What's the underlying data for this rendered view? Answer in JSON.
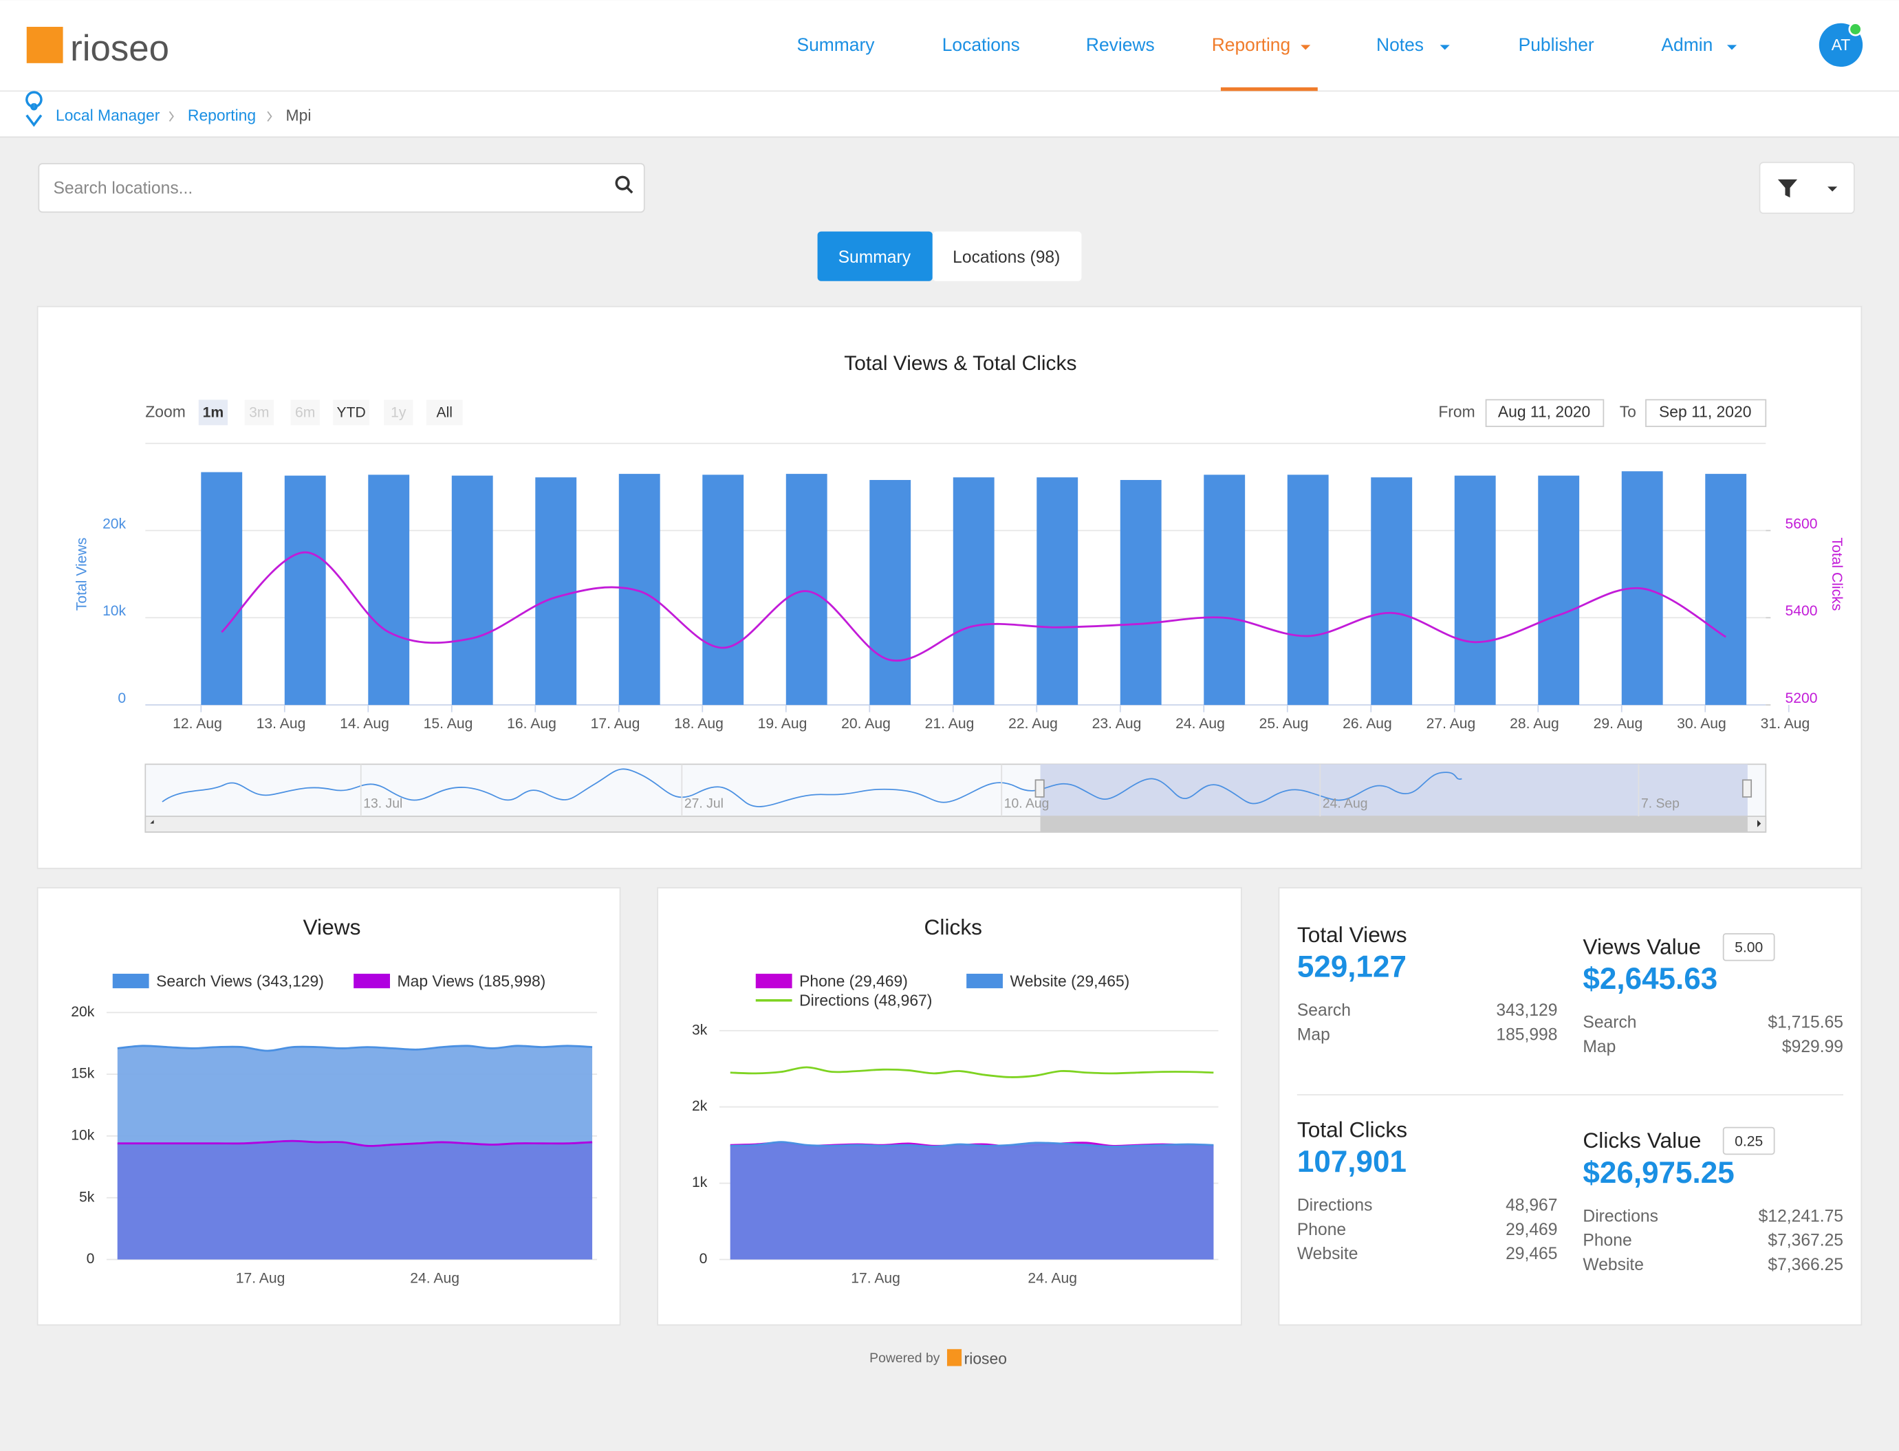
{
  "nav": {
    "logo": "rioseo",
    "items": [
      "Summary",
      "Locations",
      "Reviews",
      "Reporting",
      "Notes",
      "Publisher",
      "Admin"
    ],
    "active": 3,
    "dropdowns": [
      3,
      4,
      6
    ],
    "avatar": "AT"
  },
  "breadcrumb": [
    "Local Manager",
    "Reporting",
    "Mpi"
  ],
  "search_placeholder": "Search locations...",
  "tabs": [
    "Summary",
    "Locations (98)"
  ],
  "main_chart": {
    "type": "bar",
    "title": "Total Views & Total Clicks",
    "zoom_label": "Zoom",
    "zoom_buttons": [
      {
        "label": "1m",
        "state": "selected"
      },
      {
        "label": "3m",
        "state": "disabled"
      },
      {
        "label": "6m",
        "state": "disabled"
      },
      {
        "label": "YTD",
        "state": "enabled"
      },
      {
        "label": "1y",
        "state": "disabled"
      },
      {
        "label": "All",
        "state": "enabled"
      }
    ],
    "from_label": "From",
    "from": "Aug 11, 2020",
    "to_label": "To",
    "to": "Sep 11, 2020",
    "categories": [
      "12. Aug",
      "13. Aug",
      "14. Aug",
      "15. Aug",
      "16. Aug",
      "17. Aug",
      "18. Aug",
      "19. Aug",
      "20. Aug",
      "21. Aug",
      "22. Aug",
      "23. Aug",
      "24. Aug",
      "25. Aug",
      "26. Aug",
      "27. Aug",
      "28. Aug",
      "29. Aug",
      "30. Aug",
      "31. Aug"
    ],
    "series": [
      {
        "name": "Total Views",
        "color": "#4a90e2",
        "axis": "y",
        "values": [
          26700,
          26300,
          26400,
          26300,
          26100,
          26500,
          26400,
          26500,
          25800,
          26100,
          26100,
          25800,
          26400,
          26400,
          26100,
          26300,
          26300,
          26800,
          26500,
          null
        ]
      },
      {
        "name": "Total Clicks",
        "color": "#c21bd8",
        "axis": "y2",
        "values": [
          5367,
          5550,
          5367,
          5353,
          5447,
          5461,
          5331,
          5461,
          5303,
          5381,
          5378,
          5386,
          5400,
          5358,
          5411,
          5344,
          5406,
          5467,
          5356,
          null
        ]
      }
    ],
    "ylim": [
      0,
      30000
    ],
    "yticks": [
      {
        "value": 0,
        "label": "0"
      },
      {
        "value": 10000,
        "label": "10k"
      },
      {
        "value": 20000,
        "label": "20k"
      }
    ],
    "y2lim": [
      5200,
      5800
    ],
    "y2ticks": [
      5200,
      5400,
      5600
    ],
    "navigator_labels": [
      "13. Jul",
      "27. Jul",
      "10. Aug",
      "24. Aug",
      "7. Sep"
    ]
  },
  "views_chart": {
    "type": "area",
    "title": "Views",
    "series": [
      {
        "name": "Search Views (343,129)",
        "color": "#4a90e2",
        "fill": "#79a9e8",
        "values": [
          17100,
          17300,
          17200,
          17100,
          17200,
          17200,
          16900,
          17200,
          17200,
          17100,
          17200,
          17100,
          17000,
          17200,
          17300,
          17100,
          17300,
          17200,
          17300,
          17200
        ]
      },
      {
        "name": "Map Views (185,998)",
        "color": "#b000e0",
        "fill": "#6a7ee3",
        "values": [
          9400,
          9400,
          9400,
          9400,
          9400,
          9400,
          9500,
          9600,
          9500,
          9500,
          9200,
          9300,
          9400,
          9500,
          9400,
          9300,
          9400,
          9400,
          9400,
          9500
        ]
      }
    ],
    "ylim": [
      0,
      20000
    ],
    "yticks": [
      {
        "value": 0,
        "label": "0"
      },
      {
        "value": 5000,
        "label": "5k"
      },
      {
        "value": 10000,
        "label": "10k"
      },
      {
        "value": 15000,
        "label": "15k"
      },
      {
        "value": 20000,
        "label": "20k"
      }
    ],
    "x_labels": [
      "17. Aug",
      "24. Aug"
    ]
  },
  "clicks_chart": {
    "type": "area",
    "title": "Clicks",
    "series": [
      {
        "name": "Phone (29,469)",
        "color": "#c000d8",
        "fill": "#6a7ee3",
        "values": [
          1500,
          1510,
          1530,
          1490,
          1500,
          1510,
          1500,
          1520,
          1490,
          1500,
          1510,
          1480,
          1500,
          1520,
          1530,
          1490,
          1500,
          1510,
          1500,
          1490
        ]
      },
      {
        "name": "Website (29,465)",
        "color": "#4a90e2",
        "fill": "#6a7ee3",
        "values": [
          1490,
          1500,
          1540,
          1500,
          1490,
          1500,
          1490,
          1500,
          1480,
          1510,
          1490,
          1500,
          1530,
          1520,
          1500,
          1480,
          1490,
          1500,
          1510,
          1500
        ]
      },
      {
        "name": "Directions (48,967)",
        "color": "#7ed321",
        "fill": "none",
        "values": [
          2450,
          2440,
          2460,
          2520,
          2460,
          2470,
          2490,
          2480,
          2440,
          2470,
          2420,
          2390,
          2410,
          2470,
          2450,
          2440,
          2450,
          2460,
          2460,
          2450
        ]
      }
    ],
    "ylim": [
      0,
      3000
    ],
    "yticks": [
      {
        "value": 0,
        "label": "0"
      },
      {
        "value": 1000,
        "label": "1k"
      },
      {
        "value": 2000,
        "label": "2k"
      },
      {
        "value": 3000,
        "label": "3k"
      }
    ],
    "x_labels": [
      "17. Aug",
      "24. Aug"
    ]
  },
  "stats": [
    {
      "title": "Total Views",
      "value": "529,127",
      "rows": [
        {
          "label": "Search",
          "value": "343,129"
        },
        {
          "label": "Map",
          "value": "185,998"
        }
      ]
    },
    {
      "title": "Views Value",
      "input": "5.00",
      "value": "$2,645.63",
      "rows": [
        {
          "label": "Search",
          "value": "$1,715.65"
        },
        {
          "label": "Map",
          "value": "$929.99"
        }
      ]
    },
    {
      "title": "Total Clicks",
      "value": "107,901",
      "rows": [
        {
          "label": "Directions",
          "value": "48,967"
        },
        {
          "label": "Phone",
          "value": "29,469"
        },
        {
          "label": "Website",
          "value": "29,465"
        }
      ]
    },
    {
      "title": "Clicks Value",
      "input": "0.25",
      "value": "$26,975.25",
      "rows": [
        {
          "label": "Directions",
          "value": "$12,241.75"
        },
        {
          "label": "Phone",
          "value": "$7,367.25"
        },
        {
          "label": "Website",
          "value": "$7,366.25"
        }
      ]
    }
  ],
  "footer": {
    "powered_by": "Powered by",
    "logo": "rioseo"
  }
}
